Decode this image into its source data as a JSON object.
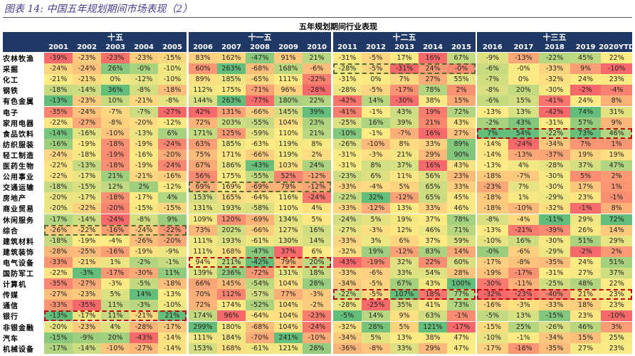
{
  "title": "图表 14: 中国五年规划期间市场表现（2）",
  "table": {
    "caption": "五年规划期间行业表现",
    "groups": [
      {
        "name": "十五",
        "years": [
          "2001",
          "2002",
          "2003",
          "2004",
          "2005"
        ]
      },
      {
        "name": "十一五",
        "years": [
          "2006",
          "2007",
          "2008",
          "2009",
          "2010"
        ]
      },
      {
        "name": "十二五",
        "years": [
          "2011",
          "2012",
          "2013",
          "2014",
          "2015"
        ]
      },
      {
        "name": "十三五",
        "years": [
          "2016",
          "2017",
          "2018",
          "2019",
          "2020YTD"
        ]
      }
    ],
    "rows": [
      {
        "label": "农林牧渔",
        "cells": [
          "-39%",
          "-23%",
          "-23%",
          "-23%",
          "-15%",
          "83%",
          "162%",
          "-47%",
          "91%",
          "21%",
          "-31%",
          "-5%",
          "17%",
          "16%",
          "67%",
          "-9%",
          "-13%",
          "-22%",
          "45%",
          "22%"
        ]
      },
      {
        "label": "采掘",
        "cells": [
          "-24%",
          "-24%",
          "26%",
          "-0%",
          "-10%",
          "60%",
          "263%",
          "-68%",
          "168%",
          "-6%",
          "-28%",
          "-5%",
          "-31%",
          "24%",
          "-0%",
          "-6%",
          "-0%",
          "-33%",
          "9%",
          "-10%"
        ]
      },
      {
        "label": "化工",
        "cells": [
          "-21%",
          "-21%",
          "0%",
          "-12%",
          "-10%",
          "89%",
          "185%",
          "-65%",
          "111%",
          "-22%",
          "-31%",
          "0%",
          "7%",
          "27%",
          "55%",
          "-7%",
          "0%",
          "-32%",
          "24%",
          "23%"
        ]
      },
      {
        "label": "钢铁",
        "cells": [
          "-18%",
          "-14%",
          "36%",
          "-8%",
          "-18%",
          "112%",
          "175%",
          "-71%",
          "96%",
          "-28%",
          "-28%",
          "-5%",
          "-17%",
          "78%",
          "2%",
          "-8%",
          "20%",
          "-30%",
          "-2%",
          "-4%"
        ]
      },
      {
        "label": "有色金属",
        "cells": [
          "-13%",
          "-23%",
          "10%",
          "-21%",
          "-8%",
          "144%",
          "263%",
          "-77%",
          "180%",
          "22%",
          "-42%",
          "14%",
          "-30%",
          "38%",
          "15%",
          "-6%",
          "15%",
          "-41%",
          "24%",
          "8%"
        ]
      },
      {
        "label": "电子",
        "cells": [
          "-35%",
          "-24%",
          "-7%",
          "-7%",
          "-27%",
          "42%",
          "131%",
          "-66%",
          "145%",
          "39%",
          "-41%",
          "-1%",
          "43%",
          "19%",
          "72%",
          "-13%",
          "13%",
          "-42%",
          "74%",
          "31%"
        ]
      },
      {
        "label": "家用电器",
        "cells": [
          "-22%",
          "-27%",
          "-8%",
          "-20%",
          "-12%",
          "72%",
          "203%",
          "-55%",
          "104%",
          "23%",
          "-25%",
          "16%",
          "39%",
          "21%",
          "43%",
          "-2%",
          "43%",
          "-31%",
          "57%",
          "9%"
        ]
      },
      {
        "label": "食品饮料",
        "cells": [
          "-14%",
          "-16%",
          "-10%",
          "-13%",
          "6%",
          "171%",
          "125%",
          "-59%",
          "110%",
          "21%",
          "-10%",
          "-1%",
          "-7%",
          "16%",
          "27%",
          "7%",
          "54%",
          "-22%",
          "73%",
          "46%"
        ]
      },
      {
        "label": "纺织服装",
        "cells": [
          "-16%",
          "-19%",
          "-18%",
          "-19%",
          "-24%",
          "63%",
          "185%",
          "-63%",
          "119%",
          "8%",
          "-26%",
          "-10%",
          "8%",
          "33%",
          "89%",
          "-14%",
          "-24%",
          "-34%",
          "7%",
          "1%"
        ]
      },
      {
        "label": "轻工制造",
        "cells": [
          "-24%",
          "-18%",
          "-19%",
          "-16%",
          "-20%",
          "75%",
          "171%",
          "-66%",
          "119%",
          "2%",
          "-31%",
          "-3%",
          "21%",
          "29%",
          "90%",
          "-14%",
          "-13%",
          "-37%",
          "19%",
          "19%"
        ]
      },
      {
        "label": "医药生物",
        "cells": [
          "-22%",
          "-13%",
          "-18%",
          "-19%",
          "-24%",
          "67%",
          "186%",
          "-43%",
          "103%",
          "24%",
          "-31%",
          "8%",
          "37%",
          "16%",
          "43%",
          "-13%",
          "4%",
          "-28%",
          "37%",
          "47%"
        ]
      },
      {
        "label": "公用事业",
        "cells": [
          "-22%",
          "-17%",
          "21%",
          "-21%",
          "-16%",
          "56%",
          "175%",
          "-55%",
          "52%",
          "-12%",
          "-23%",
          "6%",
          "11%",
          "56%",
          "23%",
          "-18%",
          "-7%",
          "-30%",
          "5%",
          "2%"
        ]
      },
      {
        "label": "交通运输",
        "cells": [
          "-18%",
          "-15%",
          "12%",
          "2%",
          "-12%",
          "69%",
          "169%",
          "-69%",
          "79%",
          "-12%",
          "-33%",
          "-4%",
          "5%",
          "65%",
          "33%",
          "-23%",
          "7%",
          "-30%",
          "17%",
          "1%"
        ]
      },
      {
        "label": "房地产",
        "cells": [
          "-20%",
          "-17%",
          "-18%",
          "-17%",
          "4%",
          "153%",
          "165%",
          "-64%",
          "116%",
          "-24%",
          "-22%",
          "32%",
          "-12%",
          "65%",
          "45%",
          "-18%",
          "1%",
          "-29%",
          "23%",
          "-1%"
        ]
      },
      {
        "label": "商业贸易",
        "cells": [
          "-20%",
          "-22%",
          "-20%",
          "-15%",
          "-15%",
          "131%",
          "193%",
          "-58%",
          "110%",
          "4%",
          "-33%",
          "-12%",
          "13%",
          "33%",
          "46%",
          "-18%",
          "-10%",
          "-32%",
          "-1%",
          "8%"
        ]
      },
      {
        "label": "休闲服务",
        "cells": [
          "-17%",
          "-14%",
          "-24%",
          "-8%",
          "9%",
          "109%",
          "120%",
          "-69%",
          "134%",
          "5%",
          "-24%",
          "5%",
          "19%",
          "37%",
          "78%",
          "-8%",
          "-4%",
          "-11%",
          "29%",
          "72%"
        ]
      },
      {
        "label": "综合",
        "cells": [
          "-26%",
          "-22%",
          "-16%",
          "-24%",
          "-22%",
          "73%",
          "202%",
          "-66%",
          "127%",
          "16%",
          "-27%",
          "-3%",
          "12%",
          "46%",
          "71%",
          "-13%",
          "-21%",
          "-39%",
          "26%",
          "14%"
        ]
      },
      {
        "label": "建筑材料",
        "cells": [
          "-18%",
          "-19%",
          "-4%",
          "-26%",
          "-20%",
          "111%",
          "193%",
          "-61%",
          "130%",
          "14%",
          "-33%",
          "3%",
          "6%",
          "37%",
          "59%",
          "-10%",
          "16%",
          "-30%",
          "51%",
          "29%"
        ]
      },
      {
        "label": "建筑装饰",
        "cells": [
          "-28%",
          "-25%",
          "-16%",
          "-19%",
          "-9%",
          "111%",
          "168%",
          "-47%",
          "37%",
          "6%",
          "-32%",
          "19%",
          "-12%",
          "83%",
          "14%",
          "-0%",
          "-6%",
          "-29%",
          "-2%",
          "2%"
        ]
      },
      {
        "label": "电气设备",
        "cells": [
          "-33%",
          "-21%",
          "1%",
          "-2%",
          "-1%",
          "94%",
          "211%",
          "-42%",
          "79%",
          "20%",
          "-43%",
          "-19%",
          "32%",
          "22%",
          "60%",
          "-17%",
          "-8%",
          "-35%",
          "24%",
          "51%"
        ]
      },
      {
        "label": "国防军工",
        "cells": [
          "-22%",
          "-3%",
          "-17%",
          "-30%",
          "11%",
          "139%",
          "236%",
          "-72%",
          "131%",
          "18%",
          "-33%",
          "-6%",
          "33%",
          "54%",
          "28%",
          "-19%",
          "-17%",
          "-31%",
          "27%",
          "37%"
        ]
      },
      {
        "label": "计算机",
        "cells": [
          "-35%",
          "-27%",
          "-3%",
          "-5%",
          "-18%",
          "66%",
          "145%",
          "-54%",
          "104%",
          "28%",
          "-34%",
          "-5%",
          "67%",
          "43%",
          "100%",
          "-30%",
          "-11%",
          "-25%",
          "48%",
          "22%"
        ]
      },
      {
        "label": "传媒",
        "cells": [
          "-27%",
          "-23%",
          "5%",
          "14%",
          "-13%",
          "70%",
          "112%",
          "-57%",
          "77%",
          "-3%",
          "-22%",
          "-5%",
          "107%",
          "18%",
          "77%",
          "-32%",
          "-23%",
          "-40%",
          "21%",
          "23%"
        ]
      },
      {
        "label": "通信",
        "cells": [
          "-33%",
          "-35%",
          "11%",
          "-3%",
          "-10%",
          "72%",
          "174%",
          "-52%",
          "104%",
          "-2%",
          "-28%",
          "-25%",
          "35%",
          "41%",
          "73%",
          "-16%",
          "-3%",
          "-33%",
          "18%",
          "23%"
        ]
      },
      {
        "label": "银行",
        "cells": [
          "-13%",
          "-17%",
          "11%",
          "-21%",
          "21%",
          "174%",
          "96%",
          "-64%",
          "104%",
          "-23%",
          "-5%",
          "14%",
          "9%",
          "63%",
          "-1%",
          "-5%",
          "13%",
          "-15%",
          "23%",
          "-10%"
        ]
      },
      {
        "label": "非银金融",
        "cells": [
          "-20%",
          "-23%",
          "4%",
          "-28%",
          "-17%",
          "299%",
          "180%",
          "-68%",
          "104%",
          "-24%",
          "-32%",
          "28%",
          "5%",
          "121%",
          "-17%",
          "-15%",
          "25%",
          "-26%",
          "46%",
          "3%"
        ]
      },
      {
        "label": "汽车",
        "cells": [
          "-15%",
          "-9%",
          "20%",
          "-43%",
          "-14%",
          "111%",
          "184%",
          "-70%",
          "241%",
          "-10%",
          "-34%",
          "5%",
          "13%",
          "38%",
          "47%",
          "-10%",
          "-1%",
          "-34%",
          "15%",
          "25%"
        ]
      },
      {
        "label": "机械设备",
        "cells": [
          "-17%",
          "-14%",
          "-10%",
          "-27%",
          "-14%",
          "153%",
          "168%",
          "-61%",
          "121%",
          "28%",
          "-36%",
          "-8%",
          "33%",
          "29%",
          "47%",
          "-17%",
          "-16%",
          "-35%",
          "27%",
          "23%"
        ]
      }
    ]
  }
}
